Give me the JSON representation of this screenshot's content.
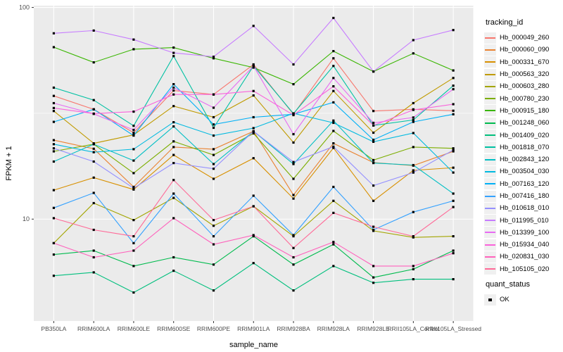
{
  "chart_data": {
    "type": "line",
    "title": "",
    "xlabel": "sample_name",
    "ylabel": "FPKM + 1",
    "x_categories": [
      "PB350LA",
      "RRIM600LA",
      "RRIM600LE",
      "RRIM600SE",
      "RRIM600PE",
      "RRIM901LA",
      "RRIM928BA",
      "RRIM928LA",
      "RRIM928LE",
      "RRII105LA_Control",
      "RRII105LA_Stressed"
    ],
    "y_scale": "log10",
    "y_ticks": [
      100,
      10
    ],
    "y_tick_labels": [
      "100",
      "10"
    ],
    "y_minor_ticks": [
      31.62
    ],
    "ylim": [
      3.3,
      102
    ],
    "grid": "on",
    "legend_position": "right",
    "legend_title": "tracking_id",
    "point_shape": "filled-square",
    "point_color": "#000000",
    "panel_bg": "#EBEBEB",
    "grid_color": "#FFFFFF",
    "tick_label_color": "#4D4D4D",
    "series": [
      {
        "name": "Hb_000049_260",
        "color": "#F8766D",
        "values": [
          38.2,
          33.0,
          25.6,
          40.5,
          38.8,
          53.8,
          31.3,
          57.5,
          32.4,
          33.0,
          32.5
        ]
      },
      {
        "name": "Hb_000060_090",
        "color": "#EA8331",
        "values": [
          23.6,
          21.5,
          14.2,
          21.9,
          21.4,
          26.0,
          13.0,
          22.8,
          18.5,
          17.9,
          20.9
        ]
      },
      {
        "name": "Hb_000331_670",
        "color": "#D89000",
        "values": [
          13.7,
          15.7,
          13.8,
          20.1,
          15.5,
          19.4,
          12.5,
          21.7,
          12.2,
          17.0,
          17.5
        ]
      },
      {
        "name": "Hb_000563_320",
        "color": "#C09B00",
        "values": [
          32.4,
          22.8,
          25.0,
          34.2,
          30.3,
          38.4,
          23.0,
          40.3,
          25.6,
          35.3,
          46.4
        ]
      },
      {
        "name": "Hb_000603_280",
        "color": "#A3A500",
        "values": [
          7.7,
          11.9,
          9.9,
          12.6,
          9.3,
          11.5,
          8.3,
          12.2,
          8.8,
          8.2,
          8.3
        ]
      },
      {
        "name": "Hb_000780_230",
        "color": "#7CAE00",
        "values": [
          20.9,
          22.6,
          16.5,
          23.3,
          20.1,
          25.4,
          15.5,
          26.1,
          19.0,
          21.9,
          21.6
        ]
      },
      {
        "name": "Hb_000915_180",
        "color": "#39B600",
        "values": [
          64.9,
          55.0,
          63.5,
          64.6,
          57.5,
          52.0,
          43.4,
          62.2,
          49.8,
          60.7,
          50.4
        ]
      },
      {
        "name": "Hb_001248_060",
        "color": "#00BB4E",
        "values": [
          6.8,
          7.1,
          6.0,
          6.6,
          6.1,
          8.3,
          6.1,
          7.6,
          5.3,
          5.8,
          7.1
        ]
      },
      {
        "name": "Hb_001409_020",
        "color": "#00BF7D",
        "values": [
          5.4,
          5.6,
          4.5,
          5.7,
          4.6,
          6.2,
          4.6,
          6.0,
          5.0,
          5.2,
          5.2
        ]
      },
      {
        "name": "Hb_001818_070",
        "color": "#00C1A3",
        "values": [
          41.8,
          36.5,
          27.6,
          58.9,
          27.0,
          53.0,
          31.5,
          52.9,
          27.7,
          29.4,
          42.7
        ]
      },
      {
        "name": "Hb_002843_120",
        "color": "#00BFC4",
        "values": [
          18.7,
          22.6,
          18.9,
          27.4,
          18.2,
          26.0,
          18.2,
          29.2,
          18.4,
          18.0,
          13.2
        ]
      },
      {
        "name": "Hb_003504_030",
        "color": "#00BAE0",
        "values": [
          22.6,
          20.7,
          21.4,
          28.7,
          24.8,
          26.9,
          31.6,
          28.5,
          23.2,
          25.5,
          16.6
        ]
      },
      {
        "name": "Hb_007163_120",
        "color": "#00B0F6",
        "values": [
          28.8,
          33.0,
          24.8,
          43.4,
          28.0,
          30.3,
          31.3,
          35.6,
          23.7,
          28.8,
          31.3
        ]
      },
      {
        "name": "Hb_007416_180",
        "color": "#35A2FF",
        "values": [
          11.3,
          13.3,
          7.7,
          13.2,
          8.3,
          12.9,
          8.4,
          14.2,
          8.9,
          10.8,
          12.2
        ]
      },
      {
        "name": "Hb_010618_010",
        "color": "#9590FF",
        "values": [
          21.6,
          18.7,
          14.0,
          18.4,
          17.3,
          26.0,
          18.6,
          22.0,
          14.4,
          16.6,
          21.2
        ]
      },
      {
        "name": "Hb_011995_010",
        "color": "#C77CFF",
        "values": [
          75.5,
          77.8,
          70.5,
          61.0,
          58.5,
          81.8,
          53.8,
          89.2,
          49.8,
          70.1,
          78.2
        ]
      },
      {
        "name": "Hb_013399_100",
        "color": "#E76BF3",
        "values": [
          35.3,
          31.4,
          26.4,
          41.8,
          33.6,
          52.9,
          25.2,
          46.4,
          28.5,
          30.2,
          41.1
        ]
      },
      {
        "name": "Hb_015934_040",
        "color": "#FA62DB",
        "values": [
          33.5,
          31.5,
          32.2,
          38.8,
          38.8,
          40.3,
          31.0,
          42.4,
          27.7,
          32.8,
          34.9
        ]
      },
      {
        "name": "Hb_020831_030",
        "color": "#FF62BC",
        "values": [
          7.7,
          6.6,
          7.1,
          10.1,
          7.6,
          8.4,
          6.6,
          7.8,
          6.0,
          6.0,
          6.9
        ]
      },
      {
        "name": "Hb_105105_020",
        "color": "#FF6A98",
        "values": [
          10.1,
          8.9,
          8.3,
          15.3,
          9.9,
          11.5,
          7.3,
          10.7,
          9.2,
          8.3,
          11.4
        ]
      }
    ]
  },
  "legend2": {
    "title": "quant_status",
    "items": [
      {
        "label": "OK"
      }
    ]
  }
}
